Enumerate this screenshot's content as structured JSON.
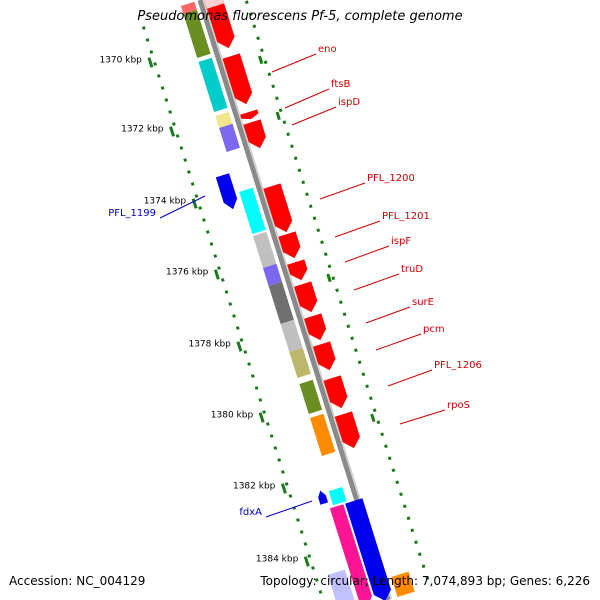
{
  "title": "Pseudomonas fluorescens Pf-5, complete genome",
  "footer": {
    "accession": "Accession: NC_004129",
    "summary": "Topology: circular; Length: 7,074,893 bp; Genes: 6,226"
  },
  "colors": {
    "backbone": "#8a8a8a",
    "tick": "#1a7a1a",
    "forward_label": "#cc0000",
    "reverse_label": "#0000cc",
    "cds": "#ff0000"
  },
  "ruler": [
    {
      "label": "1370 kbp"
    },
    {
      "label": "1372 kbp"
    },
    {
      "label": "1374 kbp"
    },
    {
      "label": "1376 kbp"
    },
    {
      "label": "1378 kbp"
    },
    {
      "label": "1380 kbp"
    },
    {
      "label": "1382 kbp"
    },
    {
      "label": "1384 kbp"
    }
  ],
  "genes": [
    {
      "name": "eno",
      "strand": "forward"
    },
    {
      "name": "ftsB",
      "strand": "forward"
    },
    {
      "name": "ispD",
      "strand": "forward"
    },
    {
      "name": "PFL_1199",
      "strand": "reverse"
    },
    {
      "name": "PFL_1200",
      "strand": "forward"
    },
    {
      "name": "PFL_1201",
      "strand": "forward"
    },
    {
      "name": "ispF",
      "strand": "forward"
    },
    {
      "name": "truD",
      "strand": "forward"
    },
    {
      "name": "surE",
      "strand": "forward"
    },
    {
      "name": "pcm",
      "strand": "forward"
    },
    {
      "name": "PFL_1206",
      "strand": "forward"
    },
    {
      "name": "rpoS",
      "strand": "forward"
    },
    {
      "name": "fdxA",
      "strand": "reverse"
    }
  ]
}
